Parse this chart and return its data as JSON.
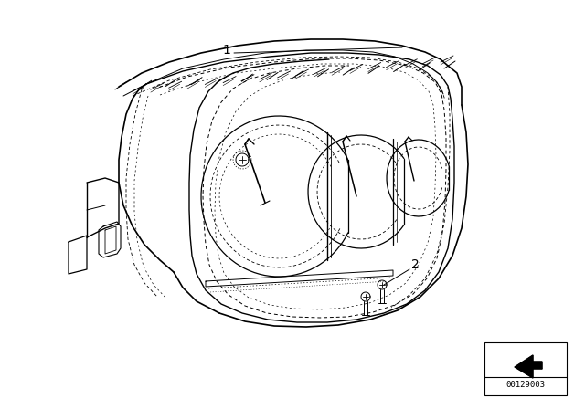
{
  "bg_color": "#ffffff",
  "line_color": "#000000",
  "label1": "1",
  "label2": "2",
  "part_number": "00129003",
  "fig_width": 6.4,
  "fig_height": 4.48,
  "dpi": 100
}
